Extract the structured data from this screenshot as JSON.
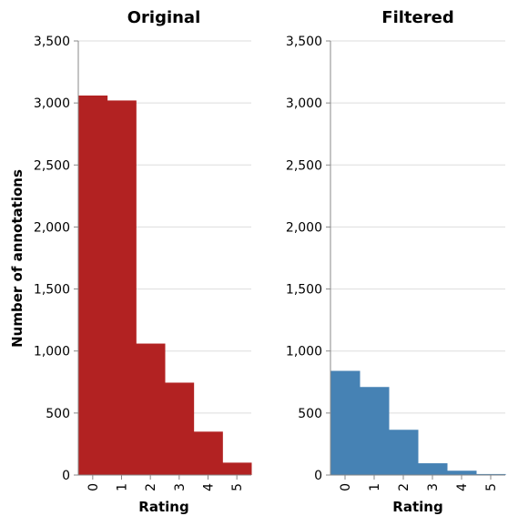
{
  "chart_data": [
    {
      "type": "bar",
      "title": "Original",
      "xlabel": "Rating",
      "ylabel": "Number of annotations",
      "categories": [
        "0",
        "1",
        "2",
        "3",
        "4",
        "5"
      ],
      "values": [
        3060,
        3020,
        1060,
        745,
        350,
        100
      ],
      "ylim": [
        0,
        3500
      ],
      "yticks": [
        0,
        500,
        1000,
        1500,
        2000,
        2500,
        3000,
        3500
      ],
      "ytick_labels": [
        "0",
        "500",
        "1,000",
        "1,500",
        "2,000",
        "2,500",
        "3,000",
        "3,500"
      ],
      "color": "#b22222",
      "grid": true
    },
    {
      "type": "bar",
      "title": "Filtered",
      "xlabel": "Rating",
      "ylabel": "",
      "categories": [
        "0",
        "1",
        "2",
        "3",
        "4",
        "5"
      ],
      "values": [
        840,
        710,
        365,
        95,
        35,
        8
      ],
      "ylim": [
        0,
        3500
      ],
      "yticks": [
        0,
        500,
        1000,
        1500,
        2000,
        2500,
        3000,
        3500
      ],
      "ytick_labels": [
        "0",
        "500",
        "1,000",
        "1,500",
        "2,000",
        "2,500",
        "3,000",
        "3,500"
      ],
      "color": "#4682b4",
      "grid": true
    }
  ]
}
